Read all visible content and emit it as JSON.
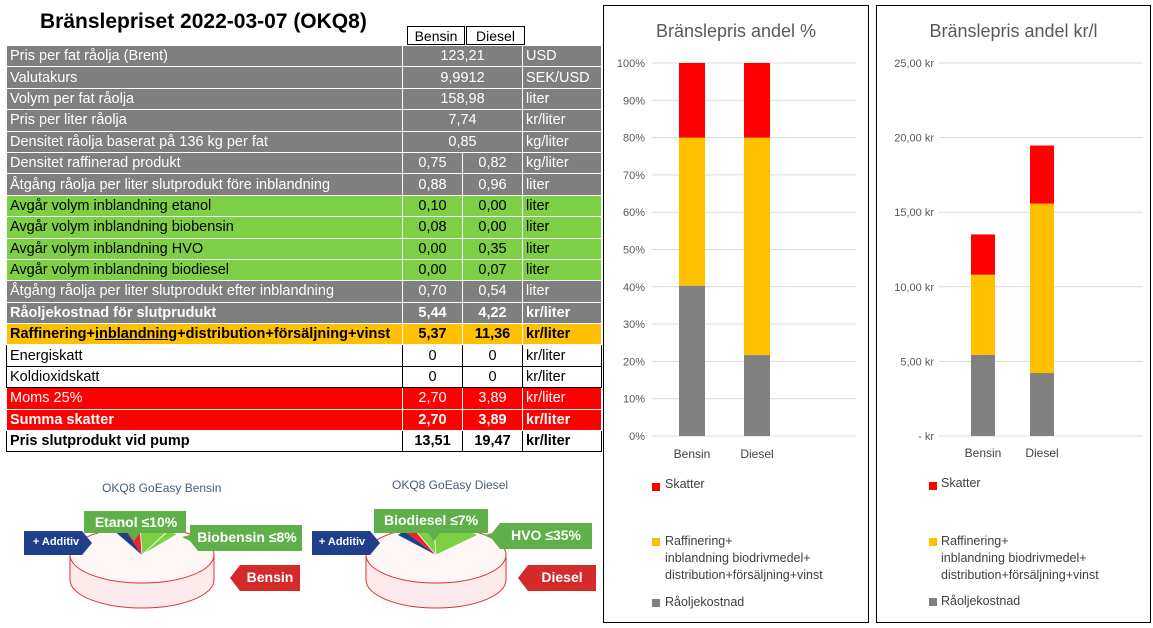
{
  "title": "Bränslepriset 2022-03-07 (OKQ8)",
  "columns": {
    "bensin": "Bensin",
    "diesel": "Diesel"
  },
  "colors": {
    "grey": "#7f7f7f",
    "green": "#7dcf45",
    "orange": "#ffc000",
    "red": "#ff0000",
    "chart_grey": "#808080",
    "chart_yellow": "#ffc000",
    "chart_red": "#ff0000"
  },
  "rows": [
    {
      "style": "grey",
      "label": "Pris per fat råolja (Brent)",
      "merged": "123,21",
      "unit": "USD"
    },
    {
      "style": "grey",
      "label": "Valutakurs",
      "merged": "9,9912",
      "unit": "SEK/USD"
    },
    {
      "style": "grey",
      "label": "Volym per fat råolja",
      "merged": "158,98",
      "unit": "liter"
    },
    {
      "style": "grey",
      "label": "Pris per liter råolja",
      "merged": "7,74",
      "unit": "kr/liter"
    },
    {
      "style": "grey",
      "label": "Densitet råolja baserat på 136 kg per fat",
      "merged": "0,85",
      "unit": "kg/liter"
    },
    {
      "style": "grey",
      "label": "Densitet raffinerad produkt",
      "bensin": "0,75",
      "diesel": "0,82",
      "unit": "kg/liter"
    },
    {
      "style": "grey",
      "label": "Åtgång råolja per liter slutprodukt före inblandning",
      "bensin": "0,88",
      "diesel": "0,96",
      "unit": "liter"
    },
    {
      "style": "green",
      "label": "Avgår volym inblandning etanol",
      "bensin": "0,10",
      "diesel": "0,00",
      "unit": "liter"
    },
    {
      "style": "green",
      "label": "Avgår volym inblandning biobensin",
      "bensin": "0,08",
      "diesel": "0,00",
      "unit": "liter"
    },
    {
      "style": "green",
      "label": "Avgår volym inblandning HVO",
      "bensin": "0,00",
      "diesel": "0,35",
      "unit": "liter"
    },
    {
      "style": "green",
      "label": "Avgår volym inblandning biodiesel",
      "bensin": "0,00",
      "diesel": "0,07",
      "unit": "liter"
    },
    {
      "style": "grey",
      "label": "Åtgång råolja per liter slutprodukt efter inblandning",
      "bensin": "0,70",
      "diesel": "0,54",
      "unit": "liter"
    },
    {
      "style": "grey bold",
      "label": "Råoljekostnad för slutprudukt",
      "bensin": "5,44",
      "diesel": "4,22",
      "unit": "kr/liter"
    },
    {
      "style": "orange",
      "label_parts": [
        "Raffinering+",
        "inblandning",
        "+distribution+försäljning+vinst"
      ],
      "bensin": "5,37",
      "diesel": "11,36",
      "unit": "kr/liter"
    },
    {
      "style": "white",
      "label": "Energiskatt",
      "bensin": "0",
      "diesel": "0",
      "unit": "kr/liter"
    },
    {
      "style": "white",
      "label": "Koldioxidskatt",
      "bensin": "0",
      "diesel": "0",
      "unit": "kr/liter"
    },
    {
      "style": "red",
      "label": "Moms 25%",
      "bensin": "2,70",
      "diesel": "3,89",
      "unit": "kr/liter"
    },
    {
      "style": "red bold",
      "label": "Summa skatter",
      "bensin": "2,70",
      "diesel": "3,89",
      "unit": "kr/liter"
    },
    {
      "style": "white bold",
      "label": "Pris slutprodukt vid pump",
      "bensin": "13,51",
      "diesel": "19,47",
      "unit": "kr/liter"
    }
  ],
  "pies": [
    {
      "subtitle": "OKQ8 GoEasy Bensin",
      "additiv": "+ Additiv",
      "green_left": "Etanol ≤10%",
      "green_right": "Biobensin ≤8%",
      "red_label": "Bensin"
    },
    {
      "subtitle": "OKQ8 GoEasy Diesel",
      "additiv": "+ Additiv",
      "green_left": "Biodiesel ≤7%",
      "green_right": "HVO ≤35%",
      "red_label": "Diesel"
    }
  ],
  "chart_data": [
    {
      "type": "bar",
      "stacked": true,
      "title": "Bränslepris andel %",
      "categories": [
        "Bensin",
        "Diesel"
      ],
      "series": [
        {
          "name": "Råoljekostnad",
          "values": [
            40.3,
            21.7
          ],
          "color": "#808080"
        },
        {
          "name": "Raffinering+ inblandning biodrivmedel+ distribution+försäljning+vinst",
          "values": [
            39.7,
            58.3
          ],
          "color": "#ffc000"
        },
        {
          "name": "Skatter",
          "values": [
            20.0,
            20.0
          ],
          "color": "#ff0000"
        }
      ],
      "ylim": [
        0,
        100
      ],
      "yticks": [
        "0%",
        "10%",
        "20%",
        "30%",
        "40%",
        "50%",
        "60%",
        "70%",
        "80%",
        "90%",
        "100%"
      ],
      "grid": true,
      "legend": "bottom"
    },
    {
      "type": "bar",
      "stacked": true,
      "title": "Bränslepris andel kr/l",
      "categories": [
        "Bensin",
        "Diesel"
      ],
      "series": [
        {
          "name": "Råoljekostnad",
          "values": [
            5.44,
            4.22
          ],
          "color": "#808080"
        },
        {
          "name": "Raffinering+ inblandning biodrivmedel+ distribution+försäljning+vinst",
          "values": [
            5.37,
            11.36
          ],
          "color": "#ffc000"
        },
        {
          "name": "Skatter",
          "values": [
            2.7,
            3.89
          ],
          "color": "#ff0000"
        }
      ],
      "ylim": [
        0,
        25
      ],
      "yticks": [
        "-  kr",
        "5,00 kr",
        "10,00 kr",
        "15,00 kr",
        "20,00 kr",
        "25,00 kr"
      ],
      "grid": true,
      "legend": "bottom"
    }
  ],
  "legend_labels": {
    "skatter": "Skatter",
    "raff_lines": [
      "Raffinering+",
      "inblandning biodrivmedel+",
      "distribution+försäljning+vinst"
    ],
    "raolje": "Råoljekostnad"
  }
}
